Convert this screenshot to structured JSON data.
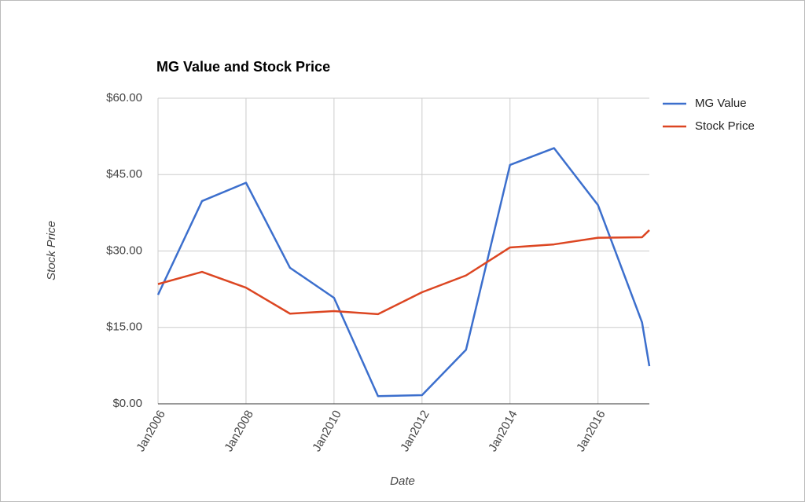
{
  "chart_data": {
    "type": "line",
    "title": "MG Value and Stock Price",
    "x_label": "Date",
    "y_label": "Stock Price",
    "x": [
      "2006-01",
      "2007-01",
      "2008-01",
      "2009-01",
      "2010-01",
      "2011-01",
      "2012-01",
      "2013-01",
      "2014-01",
      "2015-01",
      "2016-01",
      "2017-01",
      "2017-03"
    ],
    "series": [
      {
        "name": "MG Value",
        "color": "#3c6fcd",
        "values": [
          21.4,
          39.8,
          43.4,
          26.7,
          20.8,
          1.5,
          1.7,
          10.6,
          46.9,
          50.2,
          39.0,
          16.0,
          7.4
        ]
      },
      {
        "name": "Stock Price",
        "color": "#dc4622",
        "values": [
          23.5,
          25.9,
          22.8,
          17.7,
          18.2,
          17.6,
          21.9,
          25.2,
          30.7,
          31.3,
          32.6,
          32.7,
          34.1
        ]
      }
    ],
    "xlim": [
      "2006-01",
      "2017-03"
    ],
    "xticks": [
      {
        "value": "2006-01",
        "label": "Jan2006"
      },
      {
        "value": "2008-01",
        "label": "Jan2008"
      },
      {
        "value": "2010-01",
        "label": "Jan2010"
      },
      {
        "value": "2012-01",
        "label": "Jan2012"
      },
      {
        "value": "2014-01",
        "label": "Jan2014"
      },
      {
        "value": "2016-01",
        "label": "Jan2016"
      }
    ],
    "ylim": [
      0,
      60
    ],
    "yticks": [
      {
        "value": 0,
        "label": "$0.00"
      },
      {
        "value": 15,
        "label": "$15.00"
      },
      {
        "value": 30,
        "label": "$30.00"
      },
      {
        "value": 45,
        "label": "$45.00"
      },
      {
        "value": 60,
        "label": "$60.00"
      }
    ],
    "grid": true,
    "legend": "right"
  }
}
